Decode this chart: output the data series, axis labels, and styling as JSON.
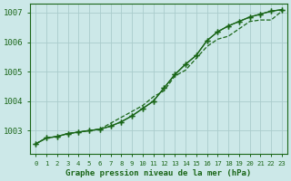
{
  "title": "Graphe pression niveau de la mer (hPa)",
  "x_labels": [
    "0",
    "1",
    "2",
    "3",
    "4",
    "5",
    "6",
    "7",
    "8",
    "9",
    "10",
    "11",
    "12",
    "13",
    "14",
    "15",
    "16",
    "17",
    "18",
    "19",
    "20",
    "21",
    "22",
    "23"
  ],
  "series1": [
    1002.55,
    1002.75,
    1002.8,
    1002.9,
    1002.95,
    1003.0,
    1003.05,
    1003.25,
    1003.45,
    1003.65,
    1003.85,
    1004.15,
    1004.35,
    1004.85,
    1005.05,
    1005.45,
    1005.85,
    1006.1,
    1006.2,
    1006.45,
    1006.7,
    1006.75,
    1006.75,
    1007.05
  ],
  "series2": [
    1002.55,
    1002.75,
    1002.8,
    1002.9,
    1002.95,
    1003.0,
    1003.05,
    1003.15,
    1003.3,
    1003.5,
    1003.75,
    1004.0,
    1004.45,
    1004.9,
    1005.25,
    1005.55,
    1006.05,
    1006.35,
    1006.55,
    1006.7,
    1006.85,
    1006.95,
    1007.05,
    1007.1
  ],
  "series3": [
    1002.55,
    1002.75,
    1002.8,
    1002.9,
    1002.95,
    1003.0,
    1003.05,
    1003.15,
    1003.3,
    1003.5,
    1003.75,
    1004.0,
    1004.45,
    1004.9,
    1005.25,
    1005.55,
    1006.05,
    1006.35,
    1006.55,
    1006.7,
    1006.85,
    1006.95,
    1007.05,
    1007.1
  ],
  "line_color": "#1a6618",
  "bg_color": "#cce8e8",
  "grid_color": "#aacccc",
  "axis_color": "#1a6618",
  "ylim_min": 1002.2,
  "ylim_max": 1007.3,
  "yticks": [
    1003,
    1004,
    1005,
    1006,
    1007
  ]
}
